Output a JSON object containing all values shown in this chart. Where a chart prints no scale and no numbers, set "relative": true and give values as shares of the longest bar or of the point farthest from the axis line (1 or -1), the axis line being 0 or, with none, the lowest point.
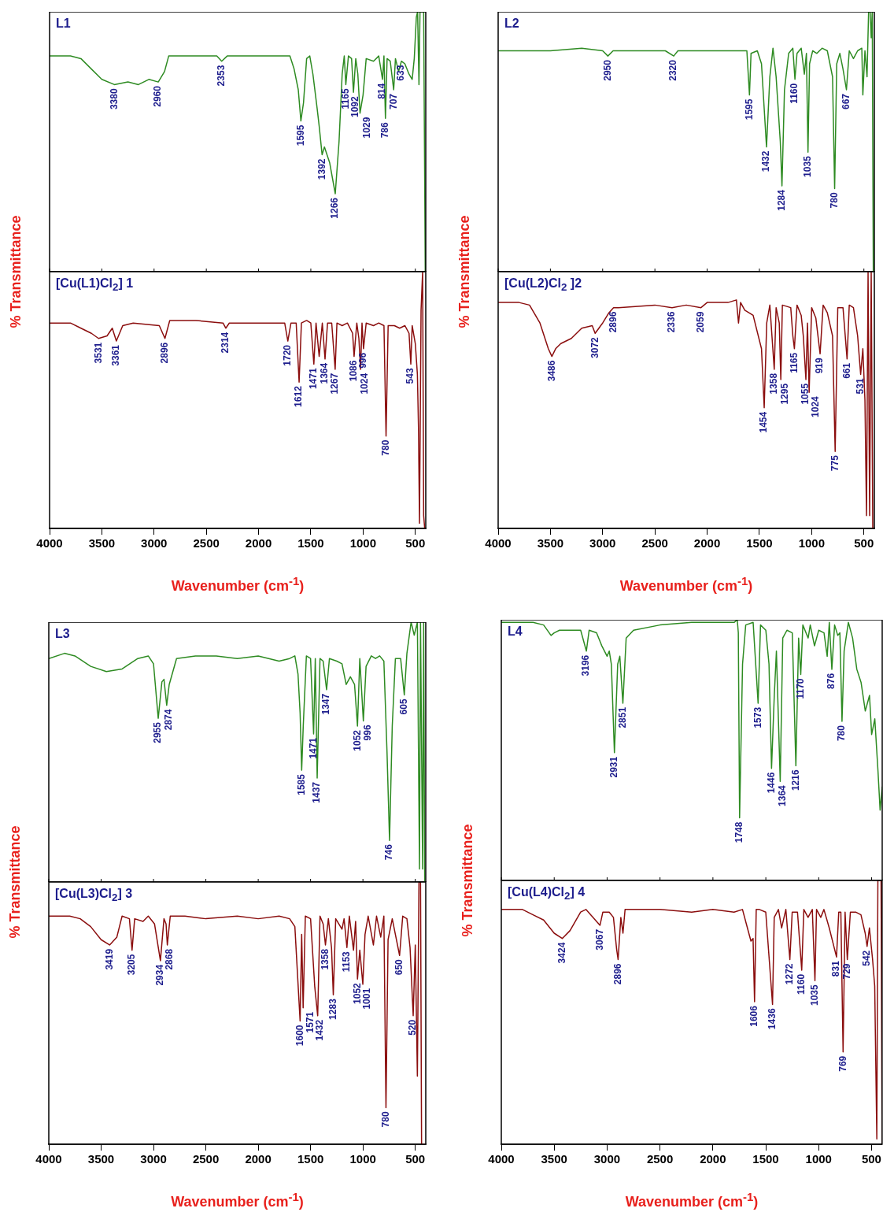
{
  "chart_data": [
    {
      "type": "line",
      "title": "L1",
      "ylabel": "% Transmittance",
      "color": "#2e8b22",
      "relative": true,
      "xlim": [
        4000,
        400
      ],
      "xticks": [
        4000,
        3500,
        3000,
        2500,
        2000,
        1500,
        1000,
        500
      ],
      "tick_labels": false,
      "x": [
        4000,
        3800,
        3700,
        3600,
        3500,
        3380,
        3250,
        3150,
        3050,
        2960,
        2900,
        2860,
        2600,
        2400,
        2353,
        2300,
        2000,
        1700,
        1660,
        1620,
        1595,
        1570,
        1540,
        1510,
        1480,
        1440,
        1420,
        1392,
        1370,
        1320,
        1266,
        1230,
        1200,
        1180,
        1165,
        1140,
        1110,
        1092,
        1070,
        1050,
        1029,
        1000,
        970,
        900,
        850,
        814,
        800,
        786,
        770,
        740,
        707,
        690,
        660,
        633,
        600,
        560,
        530,
        510,
        490,
        478,
        465,
        455,
        420,
        405,
        400
      ],
      "values": [
        0.83,
        0.83,
        0.82,
        0.78,
        0.74,
        0.72,
        0.73,
        0.72,
        0.74,
        0.73,
        0.77,
        0.83,
        0.83,
        0.83,
        0.81,
        0.83,
        0.83,
        0.83,
        0.78,
        0.7,
        0.58,
        0.65,
        0.82,
        0.83,
        0.76,
        0.63,
        0.56,
        0.45,
        0.48,
        0.42,
        0.3,
        0.5,
        0.76,
        0.83,
        0.72,
        0.83,
        0.82,
        0.69,
        0.82,
        0.76,
        0.61,
        0.68,
        0.82,
        0.81,
        0.83,
        0.74,
        0.83,
        0.59,
        0.82,
        0.81,
        0.7,
        0.82,
        0.77,
        0.81,
        0.8,
        0.76,
        0.74,
        0.82,
        0.98,
        1,
        0.72,
        1,
        1,
        0,
        0
      ],
      "annotations": [
        {
          "text": "3380",
          "x": 3380,
          "y": 0.72
        },
        {
          "text": "2960",
          "x": 2960,
          "y": 0.73
        },
        {
          "text": "2353",
          "x": 2353,
          "y": 0.81
        },
        {
          "text": "1595",
          "x": 1595,
          "y": 0.58
        },
        {
          "text": "1392",
          "x": 1392,
          "y": 0.45
        },
        {
          "text": "1266",
          "x": 1266,
          "y": 0.3
        },
        {
          "text": "1165",
          "x": 1165,
          "y": 0.72
        },
        {
          "text": "1092",
          "x": 1092,
          "y": 0.69
        },
        {
          "text": "1029",
          "x": 1029,
          "y": 0.61
        },
        {
          "text": "814",
          "x": 814,
          "y": 0.74
        },
        {
          "text": "786",
          "x": 786,
          "y": 0.59
        },
        {
          "text": "707",
          "x": 707,
          "y": 0.7
        },
        {
          "text": "633",
          "x": 633,
          "y": 0.81
        }
      ]
    },
    {
      "type": "line",
      "title": "[Cu(L1)Cl$_{2}$] 1",
      "xlabel": "Wavenumber (cm$^{-1}$)",
      "color": "#8b0e0e",
      "relative": true,
      "xlim": [
        4000,
        400
      ],
      "xticks": [
        4000,
        3500,
        3000,
        2500,
        2000,
        1500,
        1000,
        500
      ],
      "tick_labels": "x",
      "x": [
        4000,
        3800,
        3700,
        3600,
        3531,
        3450,
        3400,
        3361,
        3300,
        3200,
        2950,
        2896,
        2850,
        2600,
        2340,
        2314,
        2280,
        2000,
        1750,
        1720,
        1690,
        1640,
        1612,
        1590,
        1540,
        1500,
        1471,
        1450,
        1420,
        1390,
        1364,
        1340,
        1300,
        1267,
        1250,
        1200,
        1150,
        1100,
        1086,
        1060,
        1040,
        1024,
        1010,
        996,
        970,
        900,
        850,
        800,
        780,
        760,
        700,
        650,
        600,
        560,
        543,
        530,
        500,
        480,
        470,
        460,
        445,
        430,
        420,
        410,
        400
      ],
      "values": [
        0.8,
        0.8,
        0.78,
        0.76,
        0.74,
        0.75,
        0.78,
        0.73,
        0.79,
        0.8,
        0.79,
        0.74,
        0.81,
        0.81,
        0.8,
        0.78,
        0.8,
        0.8,
        0.8,
        0.73,
        0.8,
        0.8,
        0.57,
        0.8,
        0.81,
        0.8,
        0.64,
        0.8,
        0.67,
        0.8,
        0.66,
        0.8,
        0.8,
        0.62,
        0.8,
        0.79,
        0.8,
        0.76,
        0.67,
        0.8,
        0.74,
        0.62,
        0.8,
        0.7,
        0.8,
        0.79,
        0.8,
        0.79,
        0.36,
        0.79,
        0.79,
        0.78,
        0.79,
        0.76,
        0.64,
        0.79,
        0.72,
        0.6,
        0.4,
        0.02,
        0.85,
        1,
        0.05,
        0,
        0
      ],
      "annotations": [
        {
          "text": "3531",
          "x": 3531,
          "y": 0.74
        },
        {
          "text": "3361",
          "x": 3361,
          "y": 0.73
        },
        {
          "text": "2896",
          "x": 2896,
          "y": 0.74
        },
        {
          "text": "2314",
          "x": 2314,
          "y": 0.78
        },
        {
          "text": "1720",
          "x": 1720,
          "y": 0.73
        },
        {
          "text": "1612",
          "x": 1612,
          "y": 0.57
        },
        {
          "text": "1471",
          "x": 1471,
          "y": 0.64
        },
        {
          "text": "1364",
          "x": 1364,
          "y": 0.66
        },
        {
          "text": "1267",
          "x": 1267,
          "y": 0.62
        },
        {
          "text": "1086",
          "x": 1086,
          "y": 0.67
        },
        {
          "text": "1024",
          "x": 1024,
          "y": 0.62
        },
        {
          "text": "996",
          "x": 996,
          "y": 0.7
        },
        {
          "text": "780",
          "x": 780,
          "y": 0.36
        },
        {
          "text": "543",
          "x": 543,
          "y": 0.64
        }
      ]
    },
    {
      "type": "line",
      "title": "L2",
      "ylabel": "% Transmittance",
      "color": "#2e8b22",
      "relative": true,
      "xlim": [
        4000,
        400
      ],
      "xticks": [
        4000,
        3500,
        3000,
        2500,
        2000,
        1500,
        1000,
        500
      ],
      "tick_labels": false,
      "x": [
        4000,
        3700,
        3500,
        3200,
        3000,
        2950,
        2900,
        2400,
        2320,
        2280,
        1800,
        1650,
        1620,
        1595,
        1580,
        1520,
        1480,
        1450,
        1432,
        1400,
        1370,
        1340,
        1300,
        1284,
        1260,
        1220,
        1180,
        1160,
        1140,
        1100,
        1070,
        1050,
        1035,
        1020,
        990,
        950,
        900,
        850,
        800,
        780,
        760,
        730,
        700,
        667,
        640,
        600,
        560,
        520,
        510,
        490,
        470,
        455,
        440,
        430,
        420,
        410,
        400
      ],
      "values": [
        0.85,
        0.85,
        0.85,
        0.86,
        0.85,
        0.83,
        0.85,
        0.85,
        0.83,
        0.85,
        0.85,
        0.85,
        0.85,
        0.68,
        0.84,
        0.85,
        0.8,
        0.6,
        0.48,
        0.75,
        0.86,
        0.75,
        0.5,
        0.33,
        0.7,
        0.84,
        0.86,
        0.74,
        0.84,
        0.86,
        0.76,
        0.84,
        0.46,
        0.8,
        0.85,
        0.84,
        0.86,
        0.85,
        0.75,
        0.32,
        0.8,
        0.84,
        0.78,
        0.7,
        0.85,
        0.82,
        0.85,
        0.86,
        0.68,
        0.85,
        0.75,
        1,
        1,
        0.9,
        1,
        0,
        0
      ],
      "annotations": [
        {
          "text": "2950",
          "x": 2950,
          "y": 0.83
        },
        {
          "text": "2320",
          "x": 2320,
          "y": 0.83
        },
        {
          "text": "1595",
          "x": 1595,
          "y": 0.68
        },
        {
          "text": "1432",
          "x": 1432,
          "y": 0.48
        },
        {
          "text": "1284",
          "x": 1284,
          "y": 0.33
        },
        {
          "text": "1160",
          "x": 1160,
          "y": 0.74
        },
        {
          "text": "1035",
          "x": 1035,
          "y": 0.46
        },
        {
          "text": "780",
          "x": 780,
          "y": 0.32
        },
        {
          "text": "667",
          "x": 667,
          "y": 0.7
        }
      ]
    },
    {
      "type": "line",
      "title": "[Cu(L2)Cl$_{2}$ ]2",
      "xlabel": "Wavenumber (cm$^{-1}$)",
      "color": "#8b0e0e",
      "relative": true,
      "xlim": [
        4000,
        400
      ],
      "xticks": [
        4000,
        3500,
        3000,
        2500,
        2000,
        1500,
        1000,
        500
      ],
      "tick_labels": "x",
      "x": [
        4000,
        3800,
        3700,
        3600,
        3520,
        3486,
        3450,
        3400,
        3300,
        3200,
        3100,
        3072,
        3000,
        2940,
        2896,
        2850,
        2500,
        2336,
        2200,
        2059,
        2000,
        1800,
        1720,
        1700,
        1680,
        1640,
        1560,
        1480,
        1454,
        1430,
        1400,
        1380,
        1358,
        1340,
        1310,
        1295,
        1280,
        1200,
        1180,
        1165,
        1140,
        1100,
        1080,
        1055,
        1040,
        1024,
        1000,
        960,
        919,
        890,
        850,
        800,
        775,
        750,
        700,
        661,
        640,
        600,
        560,
        531,
        510,
        490,
        475,
        460,
        445,
        430,
        415,
        400
      ],
      "values": [
        0.88,
        0.88,
        0.87,
        0.8,
        0.7,
        0.67,
        0.7,
        0.72,
        0.74,
        0.78,
        0.79,
        0.76,
        0.8,
        0.84,
        0.86,
        0.86,
        0.87,
        0.86,
        0.87,
        0.86,
        0.88,
        0.88,
        0.89,
        0.8,
        0.88,
        0.85,
        0.83,
        0.7,
        0.47,
        0.8,
        0.87,
        0.75,
        0.62,
        0.86,
        0.8,
        0.58,
        0.87,
        0.86,
        0.75,
        0.7,
        0.87,
        0.83,
        0.75,
        0.58,
        0.8,
        0.53,
        0.86,
        0.82,
        0.68,
        0.87,
        0.84,
        0.75,
        0.3,
        0.86,
        0.86,
        0.66,
        0.87,
        0.86,
        0.75,
        0.6,
        0.7,
        0.5,
        0.05,
        1,
        0.05,
        1,
        0,
        0
      ],
      "annotations": [
        {
          "text": "3486",
          "x": 3486,
          "y": 0.67
        },
        {
          "text": "3072",
          "x": 3072,
          "y": 0.76
        },
        {
          "text": "2896",
          "x": 2896,
          "y": 0.86
        },
        {
          "text": "2336",
          "x": 2336,
          "y": 0.86
        },
        {
          "text": "2059",
          "x": 2059,
          "y": 0.86
        },
        {
          "text": "1454",
          "x": 1454,
          "y": 0.47
        },
        {
          "text": "1358",
          "x": 1358,
          "y": 0.62
        },
        {
          "text": "1295",
          "x": 1295,
          "y": 0.58
        },
        {
          "text": "1165",
          "x": 1165,
          "y": 0.7
        },
        {
          "text": "1055",
          "x": 1055,
          "y": 0.58
        },
        {
          "text": "1024",
          "x": 1024,
          "y": 0.53
        },
        {
          "text": "919",
          "x": 919,
          "y": 0.68
        },
        {
          "text": "775",
          "x": 775,
          "y": 0.3
        },
        {
          "text": "661",
          "x": 661,
          "y": 0.66
        },
        {
          "text": "531",
          "x": 531,
          "y": 0.6
        }
      ]
    },
    {
      "type": "line",
      "title": "L3",
      "ylabel": "% Transmittance",
      "color": "#2e8b22",
      "relative": true,
      "xlim": [
        4000,
        400
      ],
      "xticks": [
        4000,
        3500,
        3000,
        2500,
        2000,
        1500,
        1000,
        500
      ],
      "tick_labels": false,
      "x": [
        4000,
        3850,
        3750,
        3600,
        3450,
        3300,
        3150,
        3050,
        3000,
        2955,
        2920,
        2900,
        2874,
        2850,
        2780,
        2600,
        2400,
        2200,
        2000,
        1800,
        1700,
        1650,
        1620,
        1600,
        1585,
        1570,
        1540,
        1500,
        1471,
        1455,
        1437,
        1410,
        1380,
        1347,
        1320,
        1250,
        1200,
        1160,
        1120,
        1080,
        1052,
        1030,
        996,
        970,
        920,
        880,
        840,
        800,
        770,
        746,
        720,
        690,
        640,
        605,
        580,
        540,
        510,
        480,
        460,
        450,
        430,
        420,
        410,
        400
      ],
      "values": [
        0.86,
        0.88,
        0.87,
        0.83,
        0.81,
        0.82,
        0.86,
        0.87,
        0.84,
        0.63,
        0.77,
        0.78,
        0.68,
        0.76,
        0.86,
        0.87,
        0.87,
        0.86,
        0.87,
        0.85,
        0.86,
        0.87,
        0.8,
        0.65,
        0.43,
        0.6,
        0.87,
        0.86,
        0.57,
        0.86,
        0.4,
        0.86,
        0.85,
        0.74,
        0.86,
        0.85,
        0.84,
        0.76,
        0.79,
        0.76,
        0.6,
        0.86,
        0.62,
        0.83,
        0.87,
        0.86,
        0.87,
        0.85,
        0.5,
        0.16,
        0.6,
        0.86,
        0.86,
        0.72,
        0.88,
        1,
        0.95,
        1,
        0.05,
        1,
        0.05,
        1,
        0,
        0
      ],
      "annotations": [
        {
          "text": "2955",
          "x": 2955,
          "y": 0.63
        },
        {
          "text": "2874",
          "x": 2874,
          "y": 0.68
        },
        {
          "text": "1585",
          "x": 1585,
          "y": 0.43
        },
        {
          "text": "1471",
          "x": 1471,
          "y": 0.57
        },
        {
          "text": "1437",
          "x": 1437,
          "y": 0.4
        },
        {
          "text": "1347",
          "x": 1347,
          "y": 0.74
        },
        {
          "text": "1052",
          "x": 1052,
          "y": 0.6
        },
        {
          "text": "996",
          "x": 996,
          "y": 0.62
        },
        {
          "text": "746",
          "x": 746,
          "y": 0.16
        },
        {
          "text": "605",
          "x": 605,
          "y": 0.72
        }
      ]
    },
    {
      "type": "line",
      "title": "[Cu(L3)Cl$_{2}$] 3",
      "xlabel": "Wavenumber (cm$^{-1}$)",
      "color": "#8b0e0e",
      "relative": true,
      "xlim": [
        4000,
        400
      ],
      "xticks": [
        4000,
        3500,
        3000,
        2500,
        2000,
        1500,
        1000,
        500
      ],
      "tick_labels": "x",
      "x": [
        4000,
        3800,
        3700,
        3600,
        3500,
        3419,
        3350,
        3300,
        3230,
        3205,
        3180,
        3100,
        3050,
        2990,
        2934,
        2900,
        2880,
        2868,
        2840,
        2700,
        2500,
        2200,
        2000,
        1800,
        1700,
        1650,
        1600,
        1585,
        1571,
        1550,
        1500,
        1460,
        1432,
        1410,
        1380,
        1358,
        1330,
        1300,
        1283,
        1260,
        1200,
        1180,
        1153,
        1130,
        1090,
        1070,
        1052,
        1030,
        1001,
        980,
        950,
        900,
        870,
        830,
        800,
        780,
        760,
        720,
        690,
        650,
        620,
        580,
        550,
        520,
        500,
        480,
        465,
        450,
        440,
        400
      ],
      "values": [
        0.87,
        0.87,
        0.86,
        0.83,
        0.78,
        0.76,
        0.79,
        0.87,
        0.86,
        0.74,
        0.86,
        0.85,
        0.87,
        0.84,
        0.7,
        0.86,
        0.84,
        0.76,
        0.87,
        0.87,
        0.86,
        0.87,
        0.86,
        0.87,
        0.86,
        0.83,
        0.47,
        0.8,
        0.52,
        0.87,
        0.86,
        0.6,
        0.49,
        0.87,
        0.84,
        0.76,
        0.86,
        0.75,
        0.57,
        0.86,
        0.82,
        0.86,
        0.75,
        0.87,
        0.74,
        0.85,
        0.63,
        0.74,
        0.61,
        0.8,
        0.87,
        0.76,
        0.87,
        0.79,
        0.87,
        0.14,
        0.78,
        0.86,
        0.8,
        0.72,
        0.87,
        0.86,
        0.75,
        0.49,
        0.76,
        0.26,
        1,
        1,
        0,
        0
      ],
      "annotations": [
        {
          "text": "3419",
          "x": 3419,
          "y": 0.76
        },
        {
          "text": "3205",
          "x": 3205,
          "y": 0.74
        },
        {
          "text": "2934",
          "x": 2934,
          "y": 0.7
        },
        {
          "text": "2868",
          "x": 2868,
          "y": 0.76
        },
        {
          "text": "1600",
          "x": 1600,
          "y": 0.47
        },
        {
          "text": "1571",
          "x": 1571,
          "y": 0.52
        },
        {
          "text": "1432",
          "x": 1432,
          "y": 0.49
        },
        {
          "text": "1358",
          "x": 1358,
          "y": 0.76
        },
        {
          "text": "1283",
          "x": 1283,
          "y": 0.57
        },
        {
          "text": "1153",
          "x": 1153,
          "y": 0.75
        },
        {
          "text": "1052",
          "x": 1052,
          "y": 0.63
        },
        {
          "text": "1001",
          "x": 1001,
          "y": 0.61
        },
        {
          "text": "780",
          "x": 780,
          "y": 0.14
        },
        {
          "text": "650",
          "x": 650,
          "y": 0.72
        },
        {
          "text": "520",
          "x": 520,
          "y": 0.49
        }
      ]
    },
    {
      "type": "line",
      "title": "L4",
      "ylabel": "% Transmittance",
      "color": "#2e8b22",
      "relative": true,
      "xlim": [
        4000,
        400
      ],
      "xticks": [
        4000,
        3500,
        3000,
        2500,
        2000,
        1500,
        1000,
        500
      ],
      "tick_labels": false,
      "x": [
        4000,
        3700,
        3600,
        3530,
        3500,
        3450,
        3250,
        3196,
        3170,
        3100,
        3050,
        3000,
        2980,
        2960,
        2931,
        2900,
        2880,
        2851,
        2820,
        2750,
        2500,
        2200,
        1800,
        1770,
        1760,
        1748,
        1720,
        1690,
        1620,
        1573,
        1550,
        1500,
        1470,
        1446,
        1420,
        1400,
        1364,
        1340,
        1300,
        1250,
        1216,
        1190,
        1170,
        1150,
        1100,
        1080,
        1040,
        1000,
        950,
        920,
        900,
        876,
        850,
        820,
        800,
        780,
        760,
        720,
        680,
        640,
        600,
        560,
        520,
        500,
        470,
        440,
        420,
        400
      ],
      "values": [
        0.99,
        0.99,
        0.98,
        0.94,
        0.95,
        0.96,
        0.96,
        0.88,
        0.96,
        0.95,
        0.9,
        0.86,
        0.88,
        0.83,
        0.49,
        0.83,
        0.86,
        0.68,
        0.93,
        0.96,
        0.98,
        0.99,
        0.99,
        1,
        0.95,
        0.24,
        0.83,
        0.98,
        0.99,
        0.68,
        0.98,
        0.96,
        0.83,
        0.43,
        0.71,
        0.88,
        0.38,
        0.93,
        0.96,
        0.95,
        0.44,
        0.93,
        0.79,
        0.98,
        0.93,
        0.98,
        0.9,
        0.96,
        0.95,
        0.86,
        0.99,
        0.81,
        0.98,
        0.94,
        0.95,
        0.61,
        0.88,
        0.99,
        0.93,
        0.81,
        0.76,
        0.65,
        0.71,
        0.56,
        0.62,
        0.42,
        0.27,
        0.36
      ],
      "annotations": [
        {
          "text": "3196",
          "x": 3196,
          "y": 0.88
        },
        {
          "text": "2931",
          "x": 2931,
          "y": 0.49
        },
        {
          "text": "2851",
          "x": 2851,
          "y": 0.68
        },
        {
          "text": "1748",
          "x": 1748,
          "y": 0.24
        },
        {
          "text": "1573",
          "x": 1573,
          "y": 0.68
        },
        {
          "text": "1446",
          "x": 1446,
          "y": 0.43
        },
        {
          "text": "1364",
          "x": 1364,
          "y": 0.38
        },
        {
          "text": "1216",
          "x": 1216,
          "y": 0.44
        },
        {
          "text": "1170",
          "x": 1170,
          "y": 0.79
        },
        {
          "text": "876",
          "x": 876,
          "y": 0.81
        },
        {
          "text": "780",
          "x": 780,
          "y": 0.61
        }
      ]
    },
    {
      "type": "line",
      "title": "[Cu(L4)Cl$_{2}$] 4",
      "xlabel": "Wavenumber (cm$^{-1}$)",
      "color": "#8b0e0e",
      "relative": true,
      "xlim": [
        4000,
        400
      ],
      "xticks": [
        4000,
        3500,
        3000,
        2500,
        2000,
        1500,
        1000,
        500
      ],
      "tick_labels": "x",
      "x": [
        4000,
        3800,
        3700,
        3600,
        3500,
        3424,
        3350,
        3250,
        3200,
        3067,
        3040,
        2980,
        2940,
        2910,
        2896,
        2870,
        2850,
        2830,
        2500,
        2200,
        2000,
        1800,
        1720,
        1680,
        1640,
        1620,
        1606,
        1590,
        1560,
        1500,
        1436,
        1420,
        1380,
        1350,
        1310,
        1272,
        1250,
        1200,
        1160,
        1140,
        1100,
        1060,
        1035,
        1020,
        980,
        950,
        900,
        831,
        810,
        790,
        769,
        750,
        729,
        700,
        650,
        600,
        560,
        542,
        520,
        490,
        470,
        450,
        440,
        420,
        410,
        400
      ],
      "values": [
        0.89,
        0.89,
        0.87,
        0.85,
        0.8,
        0.78,
        0.81,
        0.88,
        0.89,
        0.83,
        0.88,
        0.88,
        0.86,
        0.74,
        0.7,
        0.86,
        0.8,
        0.89,
        0.89,
        0.88,
        0.89,
        0.88,
        0.89,
        0.83,
        0.77,
        0.78,
        0.54,
        0.89,
        0.89,
        0.88,
        0.53,
        0.86,
        0.89,
        0.82,
        0.89,
        0.7,
        0.88,
        0.88,
        0.66,
        0.89,
        0.86,
        0.89,
        0.62,
        0.89,
        0.86,
        0.89,
        0.82,
        0.71,
        0.88,
        0.88,
        0.35,
        0.88,
        0.7,
        0.88,
        0.88,
        0.87,
        0.8,
        0.75,
        0.82,
        0.7,
        0.6,
        0.02,
        1,
        1,
        1,
        0
      ],
      "annotations": [
        {
          "text": "3424",
          "x": 3424,
          "y": 0.78
        },
        {
          "text": "3067",
          "x": 3067,
          "y": 0.83
        },
        {
          "text": "2896",
          "x": 2896,
          "y": 0.7
        },
        {
          "text": "1606",
          "x": 1606,
          "y": 0.54
        },
        {
          "text": "1436",
          "x": 1436,
          "y": 0.53
        },
        {
          "text": "1272",
          "x": 1272,
          "y": 0.7
        },
        {
          "text": "1160",
          "x": 1160,
          "y": 0.66
        },
        {
          "text": "1035",
          "x": 1035,
          "y": 0.62
        },
        {
          "text": "831",
          "x": 831,
          "y": 0.71
        },
        {
          "text": "729",
          "x": 729,
          "y": 0.7
        },
        {
          "text": "769",
          "x": 769,
          "y": 0.35
        },
        {
          "text": "542",
          "x": 542,
          "y": 0.75
        }
      ]
    }
  ]
}
